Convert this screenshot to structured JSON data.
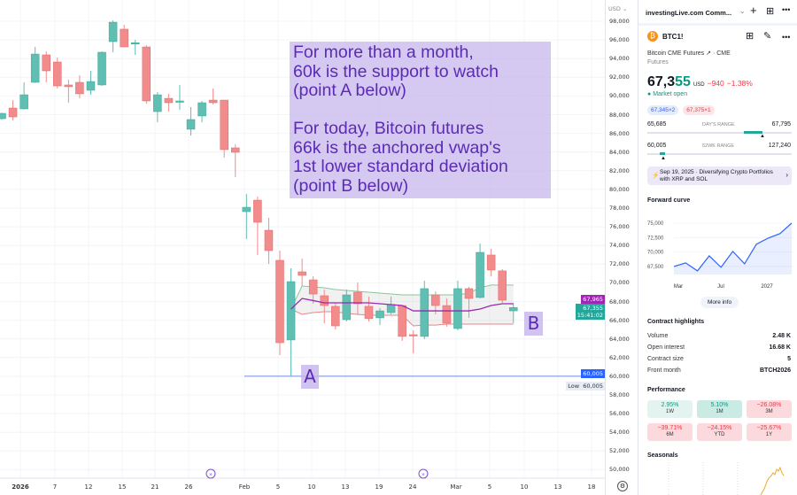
{
  "chart_data": {
    "type": "candlestick",
    "currency": "USD",
    "price_ticks": [
      "98,000",
      "96,000",
      "94,000",
      "92,000",
      "90,000",
      "88,000",
      "86,000",
      "84,000",
      "82,000",
      "80,000",
      "78,000",
      "76,000",
      "74,000",
      "72,000",
      "70,000",
      "68,000",
      "66,000",
      "64,000",
      "62,000",
      "60,000",
      "58,000",
      "56,000",
      "54,000",
      "52,000",
      "50,000"
    ],
    "ylim": [
      50000,
      98000
    ],
    "time_ticks": [
      "2026",
      "7",
      "12",
      "15",
      "21",
      "26",
      "Feb",
      "5",
      "10",
      "13",
      "19",
      "24",
      "Mar",
      "5",
      "10",
      "13",
      "18"
    ],
    "ohlc": [
      [
        87570,
        88200,
        87450,
        88140
      ],
      [
        88710,
        89560,
        87380,
        87760
      ],
      [
        88620,
        91460,
        88550,
        90130
      ],
      [
        91460,
        95250,
        91400,
        94490
      ],
      [
        94400,
        94780,
        91460,
        92690
      ],
      [
        93640,
        94110,
        90800,
        91080
      ],
      [
        91180,
        91750,
        89280,
        90990
      ],
      [
        91460,
        92220,
        89750,
        90230
      ],
      [
        90610,
        92690,
        90130,
        91550
      ],
      [
        91180,
        94780,
        91080,
        94680
      ],
      [
        95820,
        98090,
        94680,
        97900
      ],
      [
        97150,
        97620,
        95250,
        95250
      ],
      [
        95600,
        96010,
        94400,
        95700
      ],
      [
        95250,
        95440,
        89180,
        89470
      ],
      [
        88330,
        90420,
        87190,
        90130
      ],
      [
        89750,
        90230,
        88330,
        89280
      ],
      [
        89370,
        91180,
        88520,
        89470
      ],
      [
        86440,
        88810,
        85770,
        87480
      ],
      [
        87860,
        89470,
        87190,
        89280
      ],
      [
        89560,
        90800,
        89090,
        89280
      ],
      [
        89560,
        89560,
        83400,
        84260
      ],
      [
        84450,
        84830,
        81320,
        83970
      ],
      [
        77620,
        79520,
        74680,
        78090
      ],
      [
        78850,
        79230,
        72980,
        76480
      ],
      [
        75630,
        76960,
        72030,
        73450
      ],
      [
        72410,
        73450,
        62270,
        63590
      ],
      [
        63880,
        71560,
        60005,
        70130
      ],
      [
        71180,
        72600,
        69700,
        70800
      ],
      [
        70320,
        70700,
        67760,
        68800
      ],
      [
        68620,
        69280,
        65680,
        67570
      ],
      [
        67480,
        67860,
        65010,
        65390
      ],
      [
        66060,
        69280,
        65870,
        68710
      ],
      [
        69000,
        70040,
        66540,
        67760
      ],
      [
        67480,
        68520,
        65870,
        66160
      ],
      [
        66250,
        67290,
        65490,
        67000
      ],
      [
        66820,
        68520,
        66630,
        67670
      ],
      [
        67570,
        67570,
        63780,
        64260
      ],
      [
        64450,
        64920,
        62460,
        64360
      ],
      [
        64260,
        70230,
        63970,
        69380
      ],
      [
        68710,
        69090,
        66630,
        67570
      ],
      [
        67570,
        68330,
        65300,
        65680
      ],
      [
        65110,
        70230,
        64920,
        69380
      ],
      [
        69380,
        69570,
        66250,
        68330
      ],
      [
        68430,
        74210,
        68330,
        73260
      ],
      [
        72980,
        73640,
        70700,
        71370
      ],
      [
        71280,
        71460,
        67860,
        68140
      ],
      [
        67000,
        67795,
        65685,
        67355
      ]
    ],
    "vwap": {
      "start_index": 26,
      "mid": [
        67190,
        68330,
        68100,
        67860,
        67860,
        67860,
        67860,
        67860,
        67760,
        67670,
        67570,
        67000,
        67000,
        67000,
        67000,
        67000,
        67000,
        67190,
        67570,
        67760,
        67760
      ],
      "upper": [
        67190,
        69660,
        69560,
        69470,
        69280,
        69190,
        69090,
        69000,
        68900,
        68800,
        68710,
        68710,
        68710,
        68710,
        68710,
        68710,
        68900,
        69470,
        69760,
        69760,
        69760
      ],
      "lower": [
        67190,
        66630,
        66820,
        66910,
        66910,
        66730,
        66630,
        66530,
        66530,
        66530,
        66530,
        65390,
        65480,
        65480,
        65580,
        65580,
        65580,
        65580,
        65580,
        65580,
        65580
      ]
    },
    "support_line": {
      "value": 60005,
      "label": "60,005",
      "low_label": "Low",
      "low_value": "60,005"
    },
    "vwap_label": "67,965",
    "last_price_label": "67,355",
    "countdown": "15:41:02"
  },
  "annotation": {
    "lines": [
      "For more than a month,",
      "60k is the support to watch",
      "(point A below)",
      "",
      "For today, Bitcoin futures",
      "66k is the anchored vwap's",
      "1st lower standard deviation",
      "(point B below)"
    ],
    "point_a": "A",
    "point_b": "B",
    "bg": "#d8cdf0",
    "fg": "#5b2bb5"
  },
  "panel": {
    "watchlist_title": "investingLive.com Comm...",
    "symbol": "BTC1!",
    "description": "Bitcoin CME Futures",
    "exchange": "· CME",
    "type": "Futures",
    "price_main": "67,3",
    "price_tail": "55",
    "currency": "USD",
    "change": "−940",
    "change_pct": "−1.38%",
    "market_status": "Market open",
    "bid": "67,345×2",
    "ask": "67,375×1",
    "days_range": {
      "label": "DAY'S RANGE",
      "low": "65,685",
      "high": "67,795"
    },
    "wk52_range": {
      "label": "52WK RANGE",
      "low": "60,005",
      "high": "127,240"
    },
    "news": {
      "line1": "Sep 19, 2025 · Diversifying Crypto Portfolios",
      "line2": "with XRP and SOL"
    },
    "forward_curve": {
      "title": "Forward curve",
      "y_ticks": [
        "75,000",
        "72,500",
        "70,000",
        "67,500"
      ],
      "x_ticks": [
        "Mar",
        "Jul",
        "2027"
      ],
      "values": [
        67500,
        68110,
        66730,
        69340,
        67350,
        70110,
        67960,
        71340,
        72410,
        73180,
        75000
      ],
      "more_info": "More info"
    },
    "contract": {
      "title": "Contract highlights",
      "rows": [
        {
          "k": "Volume",
          "v": "2.48 K"
        },
        {
          "k": "Open interest",
          "v": "16.68 K"
        },
        {
          "k": "Contract size",
          "v": "5"
        },
        {
          "k": "Front month",
          "v": "BTCH2026"
        }
      ]
    },
    "performance": {
      "title": "Performance",
      "tiles": [
        {
          "v": "2.95%",
          "p": "1W"
        },
        {
          "v": "5.10%",
          "p": "1M"
        },
        {
          "v": "−26.08%",
          "p": "3M"
        },
        {
          "v": "−39.71%",
          "p": "6M"
        },
        {
          "v": "−24.15%",
          "p": "YTD"
        },
        {
          "v": "−25.67%",
          "p": "1Y"
        }
      ]
    },
    "seasonals": {
      "title": "Seasonals"
    }
  },
  "colors": {
    "up": "#5fbfb3",
    "down": "#f28b8b",
    "vwap": "#9c27b0",
    "accent": "#2962ff"
  }
}
